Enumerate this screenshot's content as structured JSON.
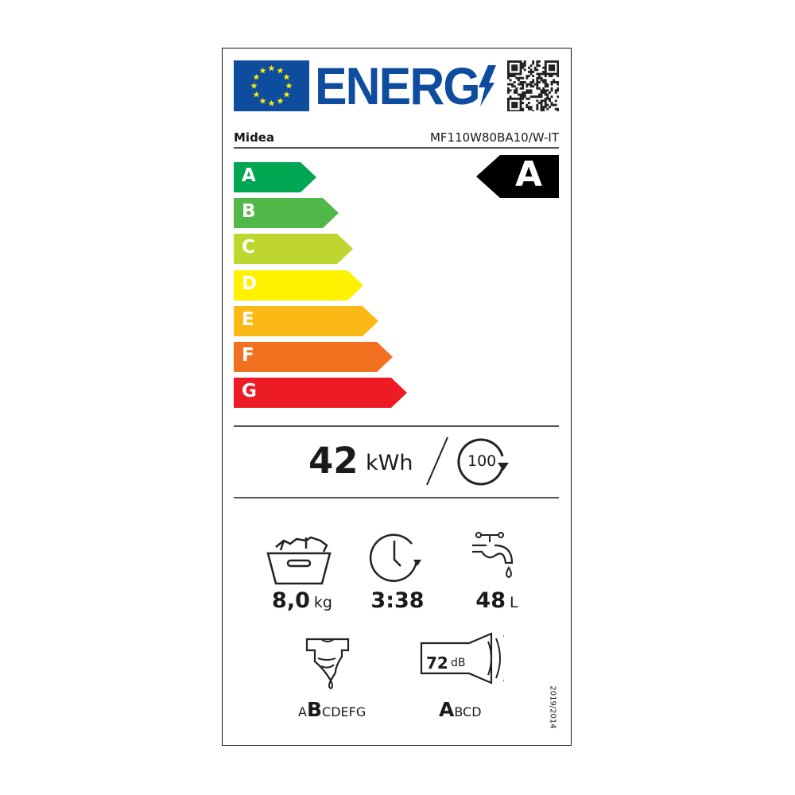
{
  "header": {
    "title": "ENERG",
    "flag": "eu-flag",
    "qr": "qr-code-icon"
  },
  "supplier": "Midea",
  "model": "MF110W80BA10/W-IT",
  "scale": [
    {
      "letter": "A",
      "color": "#00a651"
    },
    {
      "letter": "B",
      "color": "#50b848"
    },
    {
      "letter": "C",
      "color": "#bed62f"
    },
    {
      "letter": "D",
      "color": "#fff200"
    },
    {
      "letter": "E",
      "color": "#fcb814"
    },
    {
      "letter": "F",
      "color": "#f37021"
    },
    {
      "letter": "G",
      "color": "#ed1c24"
    }
  ],
  "rating": "A",
  "energy": {
    "value": "42",
    "unit": "kWh",
    "cycles": "100"
  },
  "capacity": {
    "value": "8,0",
    "unit": "kg"
  },
  "duration": {
    "value": "3:38"
  },
  "water": {
    "value": "48",
    "unit": "L"
  },
  "spin": {
    "pre": "A",
    "selected": "B",
    "post": "CDEFG"
  },
  "noise": {
    "value": "72",
    "unit": "dB",
    "selected": "A",
    "post": "BCD"
  },
  "regulation": "2019/2014"
}
